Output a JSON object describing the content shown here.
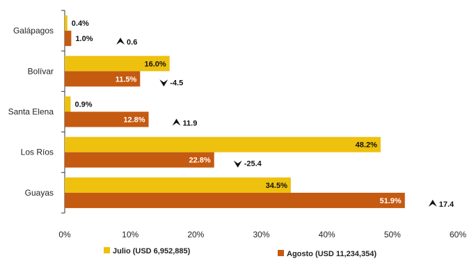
{
  "chart_data": {
    "type": "bar",
    "orientation": "horizontal",
    "categories": [
      "Galápagos",
      "Bolívar",
      "Santa Elena",
      "Los Ríos",
      "Guayas"
    ],
    "series": [
      {
        "name": "Julio (USD 6,952,885)",
        "color": "#EEC10E",
        "values": [
          0.4,
          16.0,
          0.9,
          48.2,
          34.5
        ],
        "labels": [
          "0.4%",
          "16.0%",
          "0.9%",
          "48.2%",
          "34.5%"
        ]
      },
      {
        "name": "Agosto (USD 11,234,354)",
        "color": "#C55A11",
        "values": [
          1.0,
          11.5,
          12.8,
          22.8,
          51.9
        ],
        "labels": [
          "1.0%",
          "11.5%",
          "12.8%",
          "22.8%",
          "51.9%"
        ]
      }
    ],
    "changes": [
      {
        "value": 0.6,
        "label": "0.6",
        "direction": "up"
      },
      {
        "value": -4.5,
        "label": "-4.5",
        "direction": "down"
      },
      {
        "value": 11.9,
        "label": "11.9",
        "direction": "up"
      },
      {
        "value": -25.4,
        "label": "-25.4",
        "direction": "down"
      },
      {
        "value": 17.4,
        "label": "17.4",
        "direction": "up"
      }
    ],
    "xlim": [
      0,
      60
    ],
    "xticks": [
      0,
      10,
      20,
      30,
      40,
      50,
      60
    ],
    "xtick_labels": [
      "0%",
      "10%",
      "20%",
      "30%",
      "40%",
      "50%",
      "60%"
    ],
    "grid": false,
    "legend_position": "bottom"
  }
}
